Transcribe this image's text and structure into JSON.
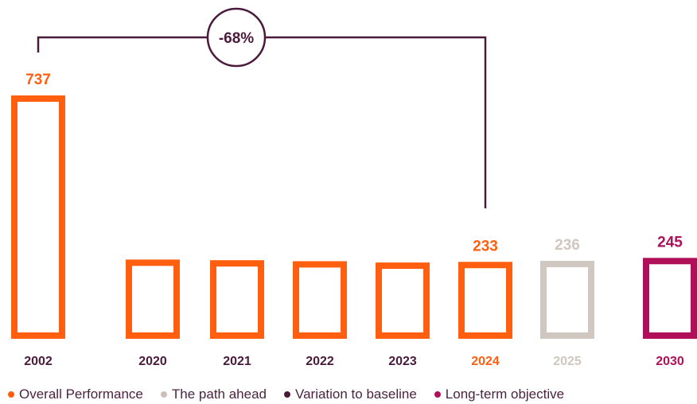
{
  "chart_data": {
    "type": "bar",
    "categories": [
      "2002",
      "2020",
      "2021",
      "2022",
      "2023",
      "2024",
      "2025",
      "2030"
    ],
    "values": [
      737,
      240,
      238,
      235,
      231,
      233,
      236,
      245
    ],
    "value_labels": [
      "737",
      "",
      "",
      "",
      "",
      "233",
      "236",
      "245"
    ],
    "series_group": [
      "overall",
      "overall",
      "overall",
      "overall",
      "overall",
      "overall",
      "path",
      "objective"
    ],
    "title": "",
    "xlabel": "",
    "ylabel": "",
    "ylim": [
      0,
      737
    ],
    "grid": false,
    "legend_position": "bottom-left",
    "annotation": {
      "label": "-68%",
      "from_category": "2002",
      "to_category": "2024"
    }
  },
  "legend": [
    {
      "key": "overall",
      "label": "Overall Performance",
      "color": "#ff5f0f"
    },
    {
      "key": "path",
      "label": "The path ahead",
      "color": "#c9c0b8"
    },
    {
      "key": "variation",
      "label": "Variation to baseline",
      "color": "#4a1a3c"
    },
    {
      "key": "objective",
      "label": "Long-term objective",
      "color": "#b0105a"
    }
  ],
  "colors": {
    "overall": "#ff5f0f",
    "path": "#cfc7c0",
    "variation": "#4a1a3c",
    "objective": "#b0105a",
    "axis_text": "#4a1a3c"
  }
}
